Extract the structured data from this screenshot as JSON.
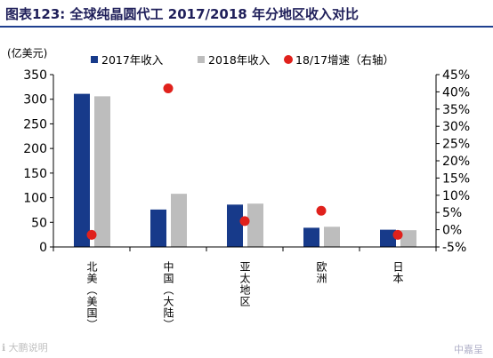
{
  "header": {
    "title": "图表123:   全球纯晶圆代工 2017/2018 年分地区收入对比"
  },
  "watermarks": {
    "left": "ℹ 大鹏说明",
    "right": "中嘉呈"
  },
  "colors": {
    "bar2017": "#173a8a",
    "bar2018": "#bdbdbd",
    "growth": "#e0211c",
    "title": "#1f1f5a",
    "rule": "#1f3f8f"
  },
  "chart_data": {
    "type": "bar",
    "title": "全球纯晶圆代工 2017/2018 年分地区收入对比",
    "yunit": "(亿美元)",
    "categories": [
      "北美（美国）",
      "中国（大陆）",
      "亚太地区",
      "欧洲",
      "日本"
    ],
    "series": [
      {
        "name": "2017年收入",
        "type": "bar",
        "axis": "left",
        "color": "#173a8a",
        "values": [
          311,
          76,
          86,
          39,
          35
        ]
      },
      {
        "name": "2018年收入",
        "type": "bar",
        "axis": "left",
        "color": "#bdbdbd",
        "values": [
          306,
          108,
          88,
          41,
          34
        ]
      },
      {
        "name": "18/17增速（右轴）",
        "type": "scatter",
        "axis": "right",
        "color": "#e0211c",
        "values": [
          -1.5,
          41,
          2.5,
          5.5,
          -1.5
        ]
      }
    ],
    "yleft": {
      "min": 0,
      "max": 350,
      "ticks": [
        "0",
        "50",
        "100",
        "150",
        "200",
        "250",
        "300",
        "350"
      ]
    },
    "yright": {
      "min": -5,
      "max": 45,
      "ticks": [
        "-5%",
        "0%",
        "5%",
        "10%",
        "15%",
        "20%",
        "25%",
        "30%",
        "35%",
        "40%",
        "45%"
      ]
    },
    "legend": "top",
    "grid": false
  }
}
